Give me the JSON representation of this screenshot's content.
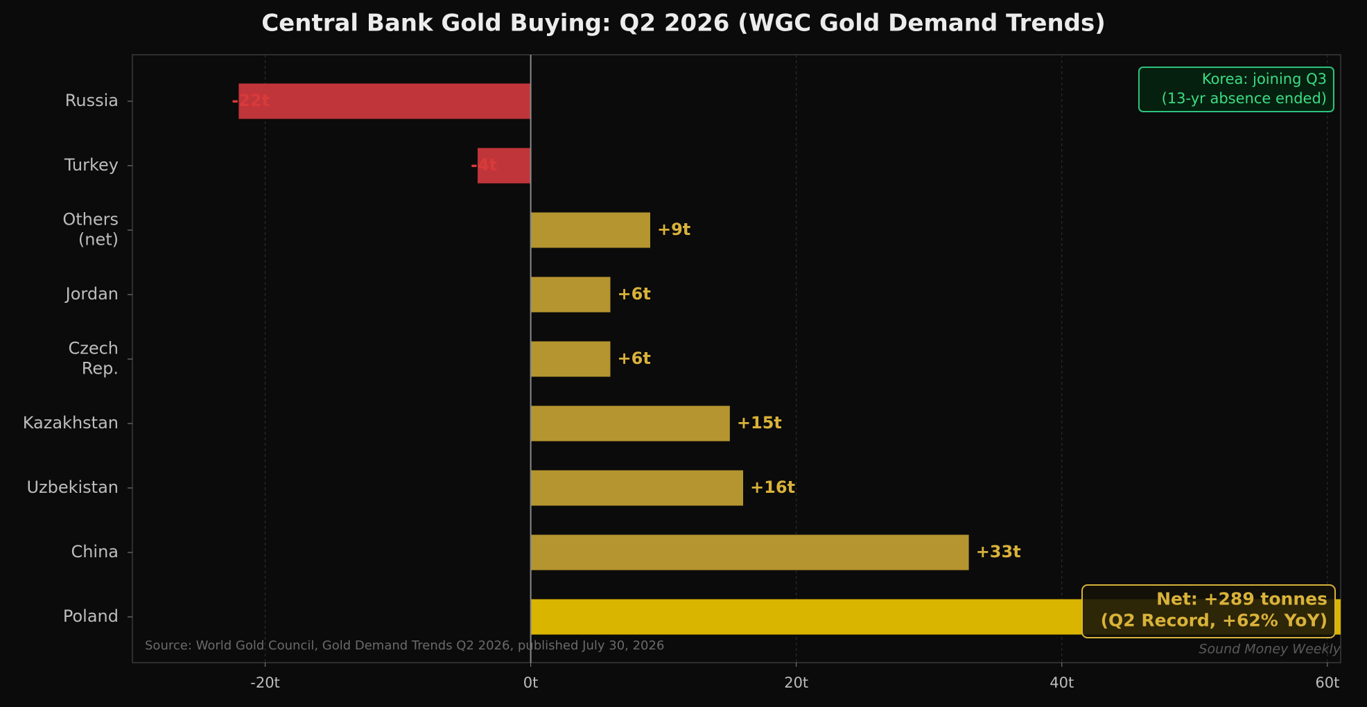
{
  "chart_data": {
    "type": "barh",
    "title": "Central Bank Gold Buying: Q2 2026 (WGC Gold Demand Trends)",
    "categories": [
      "Russia",
      "Turkey",
      "Others\n(net)",
      "Jordan",
      "Czech\nRep.",
      "Kazakhstan",
      "Uzbekistan",
      "China",
      "Poland"
    ],
    "values": [
      -22,
      -4,
      9,
      6,
      6,
      15,
      16,
      33,
      61
    ],
    "value_labels": [
      "-22t",
      "-4t",
      "+9t",
      "+6t",
      "+6t",
      "+15t",
      "+16t",
      "+33t",
      null
    ],
    "colors": [
      "#c0353a",
      "#c0353a",
      "#b5952f",
      "#b5952f",
      "#b5952f",
      "#b5952f",
      "#b5952f",
      "#b5952f",
      "#d9b500"
    ],
    "label_colors": [
      "#d83a3a",
      "#d83a3a",
      "#d9b23a",
      "#d9b23a",
      "#d9b23a",
      "#d9b23a",
      "#d9b23a",
      "#d9b23a",
      null
    ],
    "xlim": [
      -30,
      61
    ],
    "xticks": [
      {
        "value": -20,
        "label": "-20t"
      },
      {
        "value": 0,
        "label": "0t"
      },
      {
        "value": 20,
        "label": "20t"
      },
      {
        "value": 40,
        "label": "40t"
      },
      {
        "value": 60,
        "label": "60t"
      }
    ],
    "grid": true,
    "annotations": [
      "Korea: joining Q3\n(13-yr absence ended)",
      "Net: +289 tonnes\n(Q2 Record, +62% YoY)"
    ],
    "source": "Source: World Gold Council, Gold Demand Trends Q2 2026, published July 30, 2026",
    "watermark": "Sound Money Weekly"
  }
}
